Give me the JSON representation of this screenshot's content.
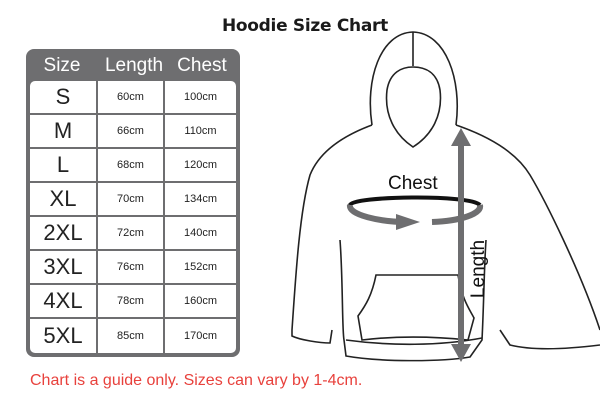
{
  "title": "Hoodie Size Chart",
  "table": {
    "headers": [
      "Size",
      "Length",
      "Chest"
    ],
    "rows": [
      [
        "S",
        "60cm",
        "100cm"
      ],
      [
        "M",
        "66cm",
        "110cm"
      ],
      [
        "L",
        "68cm",
        "120cm"
      ],
      [
        "XL",
        "70cm",
        "134cm"
      ],
      [
        "2XL",
        "72cm",
        "140cm"
      ],
      [
        "3XL",
        "76cm",
        "152cm"
      ],
      [
        "4XL",
        "78cm",
        "160cm"
      ],
      [
        "5XL",
        "85cm",
        "170cm"
      ]
    ]
  },
  "diagram": {
    "chest_label": "Chest",
    "length_label": "Length"
  },
  "note": "Chart is a guide only. Sizes can vary by 1-4cm.",
  "colors": {
    "table_frame": "#6e6e70",
    "note": "#e8413c",
    "arrow": "#6e6e70"
  }
}
